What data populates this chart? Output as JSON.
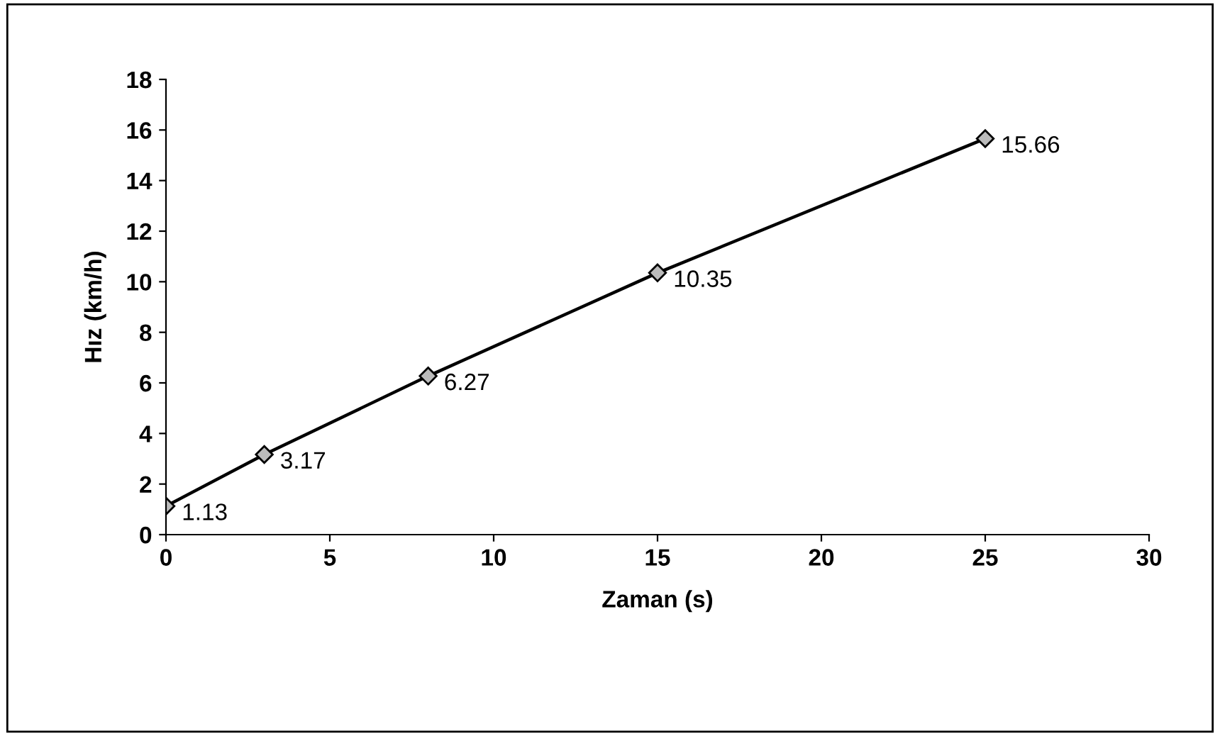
{
  "chart_data": {
    "type": "line",
    "xlabel": "Zaman (s)",
    "ylabel": "Hız (km/h)",
    "x": [
      0,
      3,
      8,
      15,
      25
    ],
    "series": [
      {
        "color": "#000000",
        "values": [
          1.13,
          3.17,
          6.27,
          10.35,
          15.66
        ]
      }
    ],
    "xlim": [
      0,
      30
    ],
    "xticks": [
      0,
      5,
      10,
      15,
      20,
      25,
      30
    ],
    "ylim": [
      0,
      18
    ],
    "yticks": [
      0,
      2,
      4,
      6,
      8,
      10,
      12,
      14,
      16,
      18
    ],
    "marker": "diamond",
    "line_style": "solid",
    "data_labels": true,
    "grid": false,
    "legend": false
  }
}
